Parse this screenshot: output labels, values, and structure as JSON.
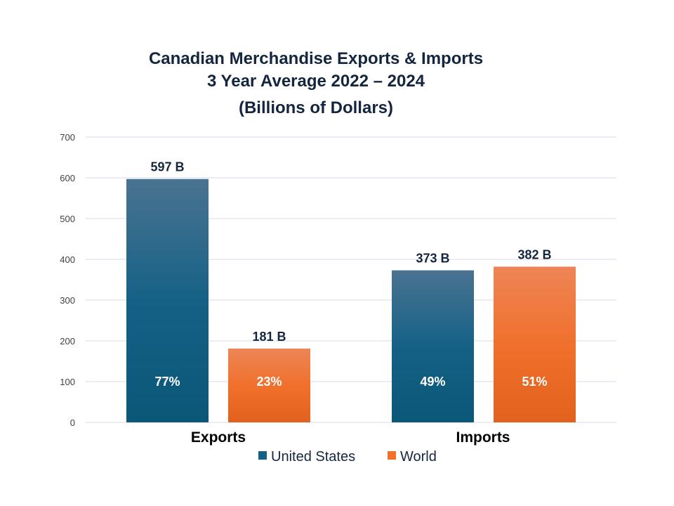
{
  "chart_data": {
    "type": "bar",
    "title": [
      "Canadian Merchandise Exports & Imports",
      "3 Year Average 2022 – 2024",
      "(Billions of Dollars)"
    ],
    "categories": [
      "Exports",
      "Imports"
    ],
    "series": [
      {
        "name": "United States",
        "values": [
          597,
          373
        ],
        "labels": [
          "597 B",
          "373 B"
        ],
        "percent_labels": [
          "77%",
          "49%"
        ],
        "color": "#156186"
      },
      {
        "name": "World",
        "values": [
          181,
          382
        ],
        "labels": [
          "181 B",
          "382 B"
        ],
        "percent_labels": [
          "23%",
          "51%"
        ],
        "color": "#f0702c"
      }
    ],
    "ylim": [
      0,
      700
    ],
    "yticks": [
      0,
      100,
      200,
      300,
      400,
      500,
      600,
      700
    ],
    "grid": true,
    "legend": "bottom",
    "xlabel": "",
    "ylabel": ""
  }
}
